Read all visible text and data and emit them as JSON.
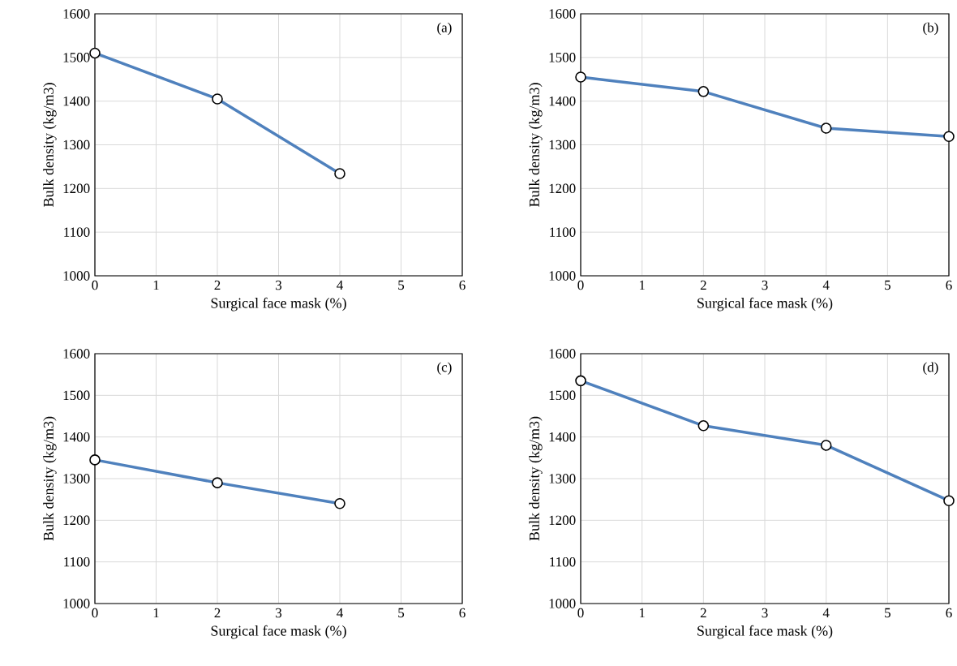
{
  "chart_data": [
    {
      "type": "line",
      "x": [
        0,
        2,
        4
      ],
      "series": [
        {
          "color": "#4f81bd",
          "values": [
            1510,
            1405,
            1234
          ]
        }
      ],
      "xlim": [
        0,
        6
      ],
      "xticks": [
        0,
        1,
        2,
        3,
        4,
        5,
        6
      ],
      "ylim": [
        1000,
        1600
      ],
      "yticks": [
        1000,
        1100,
        1200,
        1300,
        1400,
        1500,
        1600
      ],
      "xlabel": "Surgical face mask (%)",
      "ylabel": "Bulk density (kg/m3)",
      "annotations": [
        "(a)"
      ],
      "grid": true,
      "marker": "circle"
    },
    {
      "type": "line",
      "x": [
        0,
        2,
        4,
        6
      ],
      "series": [
        {
          "color": "#4f81bd",
          "values": [
            1455,
            1422,
            1338,
            1319
          ]
        }
      ],
      "xlim": [
        0,
        6
      ],
      "xticks": [
        0,
        1,
        2,
        3,
        4,
        5,
        6
      ],
      "ylim": [
        1000,
        1600
      ],
      "yticks": [
        1000,
        1100,
        1200,
        1300,
        1400,
        1500,
        1600
      ],
      "xlabel": "Surgical face mask (%)",
      "ylabel": "Bulk density (kg/m3)",
      "annotations": [
        "(b)"
      ],
      "grid": true,
      "marker": "circle"
    },
    {
      "type": "line",
      "x": [
        0,
        2,
        4
      ],
      "series": [
        {
          "color": "#4f81bd",
          "values": [
            1345,
            1290,
            1240
          ]
        }
      ],
      "xlim": [
        0,
        6
      ],
      "xticks": [
        0,
        1,
        2,
        3,
        4,
        5,
        6
      ],
      "ylim": [
        1000,
        1600
      ],
      "yticks": [
        1000,
        1100,
        1200,
        1300,
        1400,
        1500,
        1600
      ],
      "xlabel": "Surgical face mask (%)",
      "ylabel": "Bulk density (kg/m3)",
      "annotations": [
        "(c)"
      ],
      "grid": true,
      "marker": "circle"
    },
    {
      "type": "line",
      "x": [
        0,
        2,
        4,
        6
      ],
      "series": [
        {
          "color": "#4f81bd",
          "values": [
            1535,
            1427,
            1380,
            1247
          ]
        }
      ],
      "xlim": [
        0,
        6
      ],
      "xticks": [
        0,
        1,
        2,
        3,
        4,
        5,
        6
      ],
      "ylim": [
        1000,
        1600
      ],
      "yticks": [
        1000,
        1100,
        1200,
        1300,
        1400,
        1500,
        1600
      ],
      "xlabel": "Surgical face mask (%)",
      "ylabel": "Bulk density (kg/m3)",
      "annotations": [
        "(d)"
      ],
      "grid": true,
      "marker": "circle"
    }
  ]
}
